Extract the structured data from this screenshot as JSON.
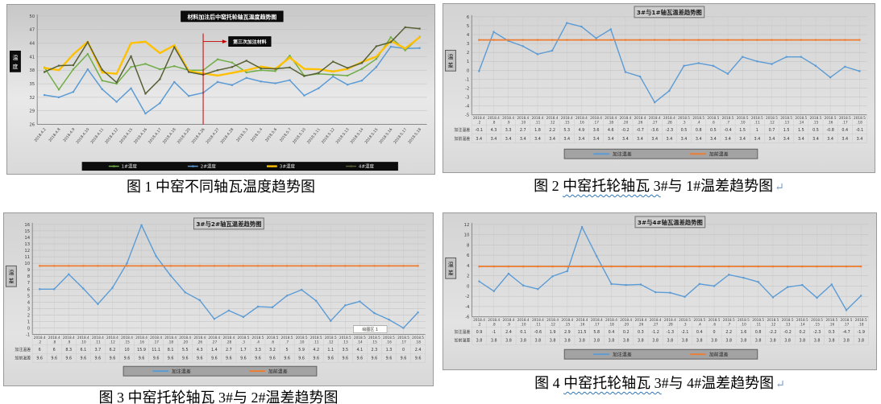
{
  "page": {
    "background": "#ffffff",
    "accent_blue": "#5b9bd5",
    "accent_orange": "#ed7d31",
    "accent_yellow": "#ffc000",
    "accent_green": "#70ad47",
    "accent_olive": "#566033",
    "annotation_red": "#c00000"
  },
  "captions": [
    {
      "segments": [
        {
          "t": "图 1 中窑不同轴瓦温度趋势图",
          "wavy": false
        }
      ],
      "mark": ""
    },
    {
      "segments": [
        {
          "t": "图 2 ",
          "wavy": false
        },
        {
          "t": "中窑托轮轴瓦 3",
          "wavy": true
        },
        {
          "t": "#与 1#温差趋势图",
          "wavy": false
        }
      ],
      "mark": "↵"
    },
    {
      "segments": [
        {
          "t": "图 3 ",
          "wavy": false
        },
        {
          "t": "中窑托轮轴瓦 3",
          "wavy": true
        },
        {
          "t": "#与 2#温差趋势图",
          "wavy": false
        }
      ],
      "mark": ""
    },
    {
      "segments": [
        {
          "t": "图 4 ",
          "wavy": false
        },
        {
          "t": "中窑托轮轴瓦 3",
          "wavy": true
        },
        {
          "t": "#与 4#温差趋势图",
          "wavy": false
        }
      ],
      "mark": "↵"
    }
  ],
  "chart_data": [
    {
      "type": "line",
      "title": "材料加注后中窑托轮轴瓦温度趋势图",
      "title_style": "black",
      "ylabel": "温度",
      "ylim": [
        26,
        50
      ],
      "ystep": 3,
      "grid": "horizontal",
      "legend_position": "bottom",
      "legend_style": "black",
      "x_label_mode": "rotated",
      "categories": [
        "2018.4.2",
        "2018.4.8",
        "2018.4.9",
        "2018.4.10",
        "2018.4.11",
        "2018.4.12",
        "2018.4.15",
        "2018.4.16",
        "2018.4.17",
        "2018.4.18",
        "2018.4.20",
        "2018.4.26",
        "2018.4.27",
        "2018.4.28",
        "2018.5.3",
        "2018.5.4",
        "2018.5.6",
        "2018.5.7",
        "2018.5.10",
        "2018.5.11",
        "2018.5.12",
        "2018.5.13",
        "2018.5.14",
        "2018.5.15",
        "2018.5.16",
        "2018.5.17",
        "2018.5.18"
      ],
      "series": [
        {
          "name": "1#温度",
          "color": "#70ad47",
          "width": 1.5,
          "markers": true,
          "values": [
            38.6,
            33.7,
            38.2,
            41.6,
            35.7,
            35,
            38.7,
            39.4,
            38.2,
            38.9,
            38,
            38,
            40.4,
            39.7,
            37.5,
            38,
            37.8,
            41.2,
            36.8,
            37.2,
            37,
            36.8,
            38.3,
            40.5,
            45.3,
            42.4,
            45.4
          ]
        },
        {
          "name": "2#温度",
          "color": "#5b9bd5",
          "width": 1.5,
          "markers": true,
          "values": [
            32.5,
            32,
            33.2,
            38.2,
            33.8,
            31,
            34,
            28.4,
            30.7,
            35.4,
            32.3,
            33,
            35.4,
            34.7,
            36.3,
            35.5,
            35.1,
            35.8,
            32.4,
            34,
            36.6,
            34.8,
            35.7,
            38.7,
            43.2,
            42.8,
            42.9
          ]
        },
        {
          "name": "3#温度",
          "color": "#ffc000",
          "width": 2.4,
          "markers": true,
          "values": [
            38.5,
            38,
            41.5,
            44.3,
            37.5,
            37.2,
            44,
            44.3,
            41.8,
            43.5,
            37.8,
            37.3,
            36.8,
            37.4,
            38,
            38.8,
            38.3,
            40.8,
            38.3,
            38.2,
            37.7,
            38.3,
            39.8,
            41,
            44.5,
            42.8,
            45.3
          ]
        },
        {
          "name": "4#温度",
          "color": "#566033",
          "width": 1.5,
          "markers": true,
          "values": [
            37.6,
            39,
            39.1,
            44.2,
            38.1,
            35.3,
            41.1,
            32.8,
            36,
            43.1,
            37.6,
            37,
            38,
            38.7,
            40.1,
            38.4,
            38.3,
            38.6,
            36.7,
            37.4,
            39.9,
            38.5,
            39.6,
            43.3,
            44.2,
            47.5,
            47.2
          ]
        }
      ],
      "annotation": {
        "text": "第三次加注材料",
        "at_category": "2018.4.26",
        "color": "#c00000"
      }
    },
    {
      "type": "line",
      "title": "3#与1#轴瓦温差趋势图",
      "title_style": "gray",
      "ylabel": "温差",
      "ylim": [
        -5,
        6
      ],
      "ystep": 1,
      "grid": "vertical",
      "legend_position": "bottom",
      "legend_style": "gray",
      "x_label_mode": "table",
      "table": {
        "row_labels": [
          "加注温差",
          "加前温差"
        ]
      },
      "categories": [
        "2018.4.2",
        "2018.4.8",
        "2018.4.9",
        "2018.4.10",
        "2018.4.11",
        "2018.4.12",
        "2018.4.15",
        "2018.4.16",
        "2018.4.17",
        "2018.4.18",
        "2018.4.20",
        "2018.4.26",
        "2018.4.27",
        "2018.4.28",
        "2018.5.3",
        "2018.5.4",
        "2018.5.6",
        "2018.5.7",
        "2018.5.10",
        "2018.5.11",
        "2018.5.12",
        "2018.5.13",
        "2018.5.14",
        "2018.5.15",
        "2018.5.16",
        "2018.5.17",
        "2018.5.18"
      ],
      "series": [
        {
          "name": "加注温差",
          "color": "#5b9bd5",
          "width": 1.4,
          "markers": true,
          "values": [
            -0.1,
            4.3,
            3.3,
            2.7,
            1.8,
            2.2,
            5.3,
            4.9,
            3.6,
            4.6,
            -0.2,
            -0.7,
            -3.6,
            -2.3,
            0.5,
            0.8,
            0.5,
            -0.4,
            1.5,
            1,
            0.7,
            1.5,
            1.5,
            0.5,
            -0.8,
            0.4,
            -0.1
          ]
        },
        {
          "name": "加前温差",
          "color": "#ed7d31",
          "width": 1.8,
          "markers": true,
          "values": [
            3.4,
            3.4,
            3.4,
            3.4,
            3.4,
            3.4,
            3.4,
            3.4,
            3.4,
            3.4,
            3.4,
            3.4,
            3.4,
            3.4,
            3.4,
            3.4,
            3.4,
            3.4,
            3.4,
            3.4,
            3.4,
            3.4,
            3.4,
            3.4,
            3.4,
            3.4,
            3.4
          ]
        }
      ]
    },
    {
      "type": "line",
      "title": "3#与2#轴瓦温差趋势图",
      "title_style": "gray",
      "ylabel": "温差",
      "ylim": [
        -1,
        16
      ],
      "ystep": 1,
      "grid": "vertical",
      "legend_position": "bottom",
      "legend_style": "gray",
      "x_label_mode": "table",
      "table": {
        "row_labels": [
          "加注温差",
          "加前温差"
        ]
      },
      "plot_note": {
        "text": "绘图区 1"
      },
      "categories": [
        "2018.4.2",
        "2018.4.8",
        "2018.4.9",
        "2018.4.10",
        "2018.4.11",
        "2018.4.12",
        "2018.4.15",
        "2018.4.16",
        "2018.4.17",
        "2018.4.18",
        "2018.4.20",
        "2018.4.26",
        "2018.4.27",
        "2018.4.28",
        "2018.5.3",
        "2018.5.4",
        "2018.5.6",
        "2018.5.7",
        "2018.5.10",
        "2018.5.11",
        "2018.5.12",
        "2018.5.13",
        "2018.5.14",
        "2018.5.15",
        "2018.5.16",
        "2018.5.17",
        "2018.5.18"
      ],
      "series": [
        {
          "name": "加注温差",
          "color": "#5b9bd5",
          "width": 1.4,
          "markers": true,
          "values": [
            6,
            6,
            8.3,
            6.1,
            3.7,
            6.2,
            10,
            15.9,
            11.1,
            8.1,
            5.5,
            4.3,
            1.4,
            2.7,
            1.7,
            3.3,
            3.2,
            5,
            5.9,
            4.2,
            1.1,
            3.5,
            4.1,
            2.3,
            1.3,
            0,
            2.4
          ]
        },
        {
          "name": "加前温差",
          "color": "#ed7d31",
          "width": 1.8,
          "markers": true,
          "values": [
            9.6,
            9.6,
            9.6,
            9.6,
            9.6,
            9.6,
            9.6,
            9.6,
            9.6,
            9.6,
            9.6,
            9.6,
            9.6,
            9.6,
            9.6,
            9.6,
            9.6,
            9.6,
            9.6,
            9.6,
            9.6,
            9.6,
            9.6,
            9.6,
            9.6,
            9.6,
            9.6
          ]
        }
      ]
    },
    {
      "type": "line",
      "title": "3#与4#轴瓦温差趋势图",
      "title_style": "gray",
      "ylabel": "温差",
      "ylim": [
        -6,
        12
      ],
      "ystep": 2,
      "grid": "vertical",
      "legend_position": "bottom",
      "legend_style": "gray",
      "x_label_mode": "table",
      "table": {
        "row_labels": [
          "加注温差",
          "加前温差"
        ]
      },
      "categories": [
        "2018.4.2",
        "2018.4.8",
        "2018.4.9",
        "2018.4.10",
        "2018.4.11",
        "2018.4.12",
        "2018.4.15",
        "2018.4.16",
        "2018.4.17",
        "2018.4.18",
        "2018.4.20",
        "2018.4.26",
        "2018.4.27",
        "2018.4.28",
        "2018.5.3",
        "2018.5.4",
        "2018.5.6",
        "2018.5.7",
        "2018.5.10",
        "2018.5.11",
        "2018.5.12",
        "2018.5.13",
        "2018.5.14",
        "2018.5.15",
        "2018.5.16",
        "2018.5.17",
        "2018.5.18"
      ],
      "series": [
        {
          "name": "加注温差",
          "color": "#5b9bd5",
          "width": 1.4,
          "markers": true,
          "values": [
            0.9,
            -1,
            2.4,
            0.1,
            -0.6,
            1.9,
            2.9,
            11.5,
            5.8,
            0.4,
            0.2,
            0.3,
            -1.2,
            -1.3,
            -2.1,
            0.4,
            0,
            2.2,
            1.6,
            0.8,
            -2.2,
            -0.2,
            0.2,
            -2.3,
            0.3,
            -4.7,
            -1.9
          ]
        },
        {
          "name": "加前温差",
          "color": "#ed7d31",
          "width": 1.8,
          "markers": true,
          "values": [
            3.8,
            3.8,
            3.8,
            3.8,
            3.8,
            3.8,
            3.8,
            3.8,
            3.8,
            3.8,
            3.8,
            3.8,
            3.8,
            3.8,
            3.8,
            3.8,
            3.8,
            3.8,
            3.8,
            3.8,
            3.8,
            3.8,
            3.8,
            3.8,
            3.8,
            3.8,
            3.8
          ]
        }
      ]
    }
  ]
}
